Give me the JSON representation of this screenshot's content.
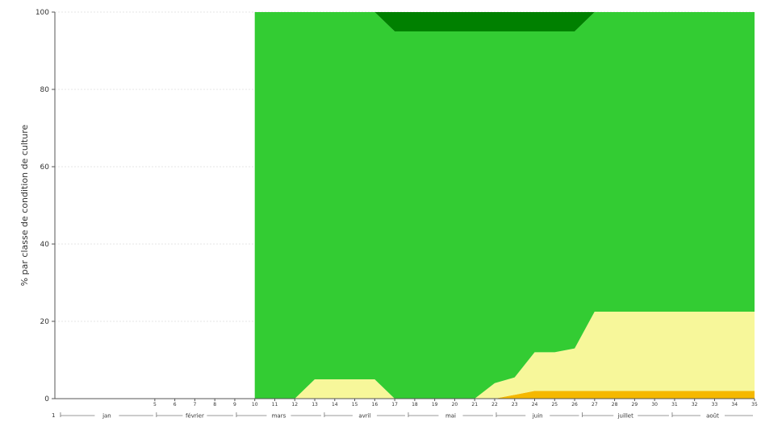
{
  "chart_data": {
    "type": "area",
    "stacked": true,
    "ylabel": "% par classe de condition de culture",
    "ylim": [
      0,
      100
    ],
    "yticks": [
      0,
      20,
      40,
      60,
      80,
      100
    ],
    "grid": true,
    "x": [
      5,
      6,
      7,
      8,
      9,
      10,
      11,
      12,
      13,
      14,
      15,
      16,
      17,
      18,
      19,
      20,
      21,
      22,
      23,
      24,
      25,
      26,
      27,
      28,
      29,
      30,
      31,
      32,
      33,
      34,
      35
    ],
    "x_labels": [
      "5",
      "6",
      "7",
      "8",
      "9",
      "10",
      "11",
      "12",
      "13",
      "14",
      "15",
      "16",
      "17",
      "18",
      "19",
      "20",
      "21",
      "22",
      "23",
      "24",
      "25",
      "26",
      "27",
      "28",
      "29",
      "30",
      "31",
      "32",
      "33",
      "34",
      "35"
    ],
    "x_first_label": "1",
    "months": [
      {
        "label": "jan",
        "start": 0.2,
        "end": 5.0
      },
      {
        "label": "février",
        "start": 5.0,
        "end": 9.0
      },
      {
        "label": "mars",
        "start": 9.0,
        "end": 13.4
      },
      {
        "label": "avril",
        "start": 13.4,
        "end": 17.6
      },
      {
        "label": "mai",
        "start": 17.6,
        "end": 22.0
      },
      {
        "label": "juin",
        "start": 22.0,
        "end": 26.3
      },
      {
        "label": "juillet",
        "start": 26.3,
        "end": 30.8
      },
      {
        "label": "août",
        "start": 30.8,
        "end": 35.0
      }
    ],
    "series_start_index": 5,
    "series": [
      {
        "color": "#f5b800",
        "values": [
          0,
          0,
          0,
          0,
          0,
          0,
          0,
          0,
          0,
          0,
          0,
          0,
          0,
          0,
          0,
          0,
          0,
          0,
          1,
          2,
          2,
          2,
          2,
          2,
          2,
          2,
          2,
          2,
          2,
          2,
          2
        ]
      },
      {
        "color": "#f7f79a",
        "values": [
          0,
          0,
          0,
          0,
          0,
          0,
          0,
          0,
          5,
          5,
          5,
          5,
          0,
          0,
          0,
          0,
          0,
          4,
          4.5,
          10,
          10,
          11,
          20.5,
          20.5,
          20.5,
          20.5,
          20.5,
          20.5,
          20.5,
          20.5,
          20.5
        ]
      },
      {
        "color": "#33cc33",
        "values": [
          0,
          0,
          0,
          0,
          0,
          100,
          100,
          100,
          95,
          95,
          95,
          95,
          95,
          95,
          95,
          95,
          95,
          91,
          89.5,
          83,
          83,
          82,
          77.5,
          77.5,
          77.5,
          77.5,
          77.5,
          77.5,
          77.5,
          77.5,
          77.5
        ]
      },
      {
        "color": "#008000",
        "values": [
          0,
          0,
          0,
          0,
          0,
          0,
          0,
          0,
          0,
          0,
          0,
          0,
          5,
          5,
          5,
          5,
          5,
          5,
          5,
          5,
          5,
          5,
          0,
          0,
          0,
          0,
          0,
          0,
          0,
          0,
          0
        ]
      }
    ]
  }
}
